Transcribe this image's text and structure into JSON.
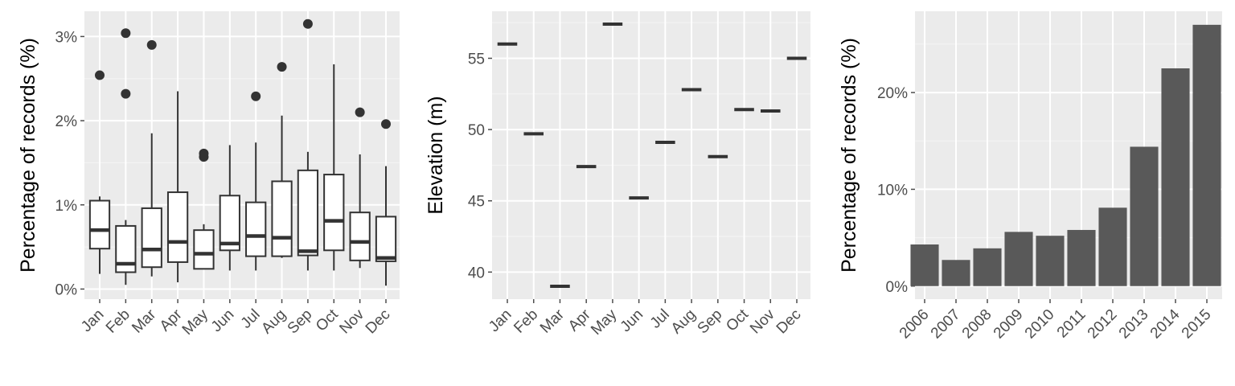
{
  "colors": {
    "panel_bg": "#ebebeb",
    "grid_major": "#ffffff",
    "grid_minor": "#f5f5f5",
    "tick_text": "#4d4d4d",
    "axis_title": "#000000",
    "box_line": "#333333",
    "box_fill": "#ffffff",
    "bar_fill": "#595959"
  },
  "chart_data": [
    {
      "type": "box",
      "ylabel": "Percentage of records (%)",
      "categories": [
        "Jan",
        "Feb",
        "Mar",
        "Apr",
        "May",
        "Jun",
        "Jul",
        "Aug",
        "Sep",
        "Oct",
        "Nov",
        "Dec"
      ],
      "yticks": [
        "0%",
        "1%",
        "2%",
        "3%"
      ],
      "ytick_values": [
        0,
        1,
        2,
        3
      ],
      "ylim": [
        -0.12,
        3.3
      ],
      "boxes": [
        {
          "min": 0.18,
          "q1": 0.48,
          "median": 0.7,
          "q3": 1.05,
          "max": 1.1,
          "outliers": [
            2.54
          ]
        },
        {
          "min": 0.05,
          "q1": 0.2,
          "median": 0.3,
          "q3": 0.75,
          "max": 0.82,
          "outliers": [
            2.32,
            3.04
          ]
        },
        {
          "min": 0.15,
          "q1": 0.26,
          "median": 0.47,
          "q3": 0.96,
          "max": 1.85,
          "outliers": [
            2.9
          ]
        },
        {
          "min": 0.08,
          "q1": 0.32,
          "median": 0.56,
          "q3": 1.15,
          "max": 2.35,
          "outliers": []
        },
        {
          "min": 0.24,
          "q1": 0.24,
          "median": 0.42,
          "q3": 0.7,
          "max": 0.77,
          "outliers": [
            1.57,
            1.61
          ]
        },
        {
          "min": 0.22,
          "q1": 0.46,
          "median": 0.54,
          "q3": 1.11,
          "max": 1.71,
          "outliers": []
        },
        {
          "min": 0.22,
          "q1": 0.39,
          "median": 0.63,
          "q3": 1.03,
          "max": 1.74,
          "outliers": [
            2.29
          ]
        },
        {
          "min": 0.37,
          "q1": 0.39,
          "median": 0.61,
          "q3": 1.28,
          "max": 2.06,
          "outliers": [
            2.64
          ]
        },
        {
          "min": 0.22,
          "q1": 0.4,
          "median": 0.45,
          "q3": 1.41,
          "max": 1.63,
          "outliers": [
            3.15
          ]
        },
        {
          "min": 0.22,
          "q1": 0.46,
          "median": 0.81,
          "q3": 1.36,
          "max": 2.67,
          "outliers": []
        },
        {
          "min": 0.25,
          "q1": 0.34,
          "median": 0.56,
          "q3": 0.91,
          "max": 1.6,
          "outliers": [
            2.1
          ]
        },
        {
          "min": 0.04,
          "q1": 0.33,
          "median": 0.37,
          "q3": 0.86,
          "max": 1.46,
          "outliers": [
            1.96
          ]
        }
      ]
    },
    {
      "type": "box",
      "ylabel": "Elevation (m)",
      "categories": [
        "Jan",
        "Feb",
        "Mar",
        "Apr",
        "May",
        "Jun",
        "Jul",
        "Aug",
        "Sep",
        "Oct",
        "Nov",
        "Dec"
      ],
      "yticks": [
        "40",
        "45",
        "50",
        "55"
      ],
      "ytick_values": [
        40,
        45,
        50,
        55
      ],
      "ylim": [
        38.1,
        58.3
      ],
      "values": [
        56.0,
        49.7,
        39.0,
        47.4,
        57.4,
        45.2,
        49.1,
        52.8,
        48.1,
        51.4,
        51.3,
        55.0
      ]
    },
    {
      "type": "bar",
      "ylabel": "Percentage of records (%)",
      "categories": [
        "2006",
        "2007",
        "2008",
        "2009",
        "2010",
        "2011",
        "2012",
        "2013",
        "2014",
        "2015"
      ],
      "values": [
        4.3,
        2.7,
        3.9,
        5.6,
        5.2,
        5.8,
        8.1,
        14.4,
        22.5,
        27.0
      ],
      "yticks": [
        "0%",
        "10%",
        "20%"
      ],
      "ytick_values": [
        0,
        10,
        20
      ],
      "ylim": [
        -1.35,
        28.4
      ]
    }
  ]
}
